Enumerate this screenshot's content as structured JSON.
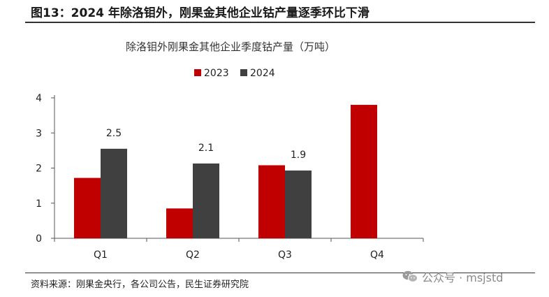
{
  "figure_title": "图13：2024 年除洛钼外，刚果金其他企业钴产量逐季环比下滑",
  "source_note": "资料来源：刚果金央行，各公司公告，民生证券研究院",
  "watermark": {
    "icon": "wechat-icon",
    "text": "公众号 · msjstd"
  },
  "chart_data": {
    "type": "bar",
    "title": "除洛钼外刚果金其他企业季度钴产量（万吨）",
    "xlabel": "",
    "ylabel": "",
    "categories": [
      "Q1",
      "Q2",
      "Q3",
      "Q4"
    ],
    "ylim": [
      0,
      4
    ],
    "yticks": [
      "0",
      "1",
      "2",
      "3",
      "4"
    ],
    "grid": false,
    "legend_position": "top-center",
    "series": [
      {
        "name": "2023",
        "color": "#c00000",
        "values": [
          1.72,
          0.85,
          2.08,
          3.8
        ]
      },
      {
        "name": "2024",
        "color": "#404040",
        "values": [
          2.55,
          2.13,
          1.93,
          null
        ]
      }
    ],
    "data_labels": [
      {
        "series": "2024",
        "category": "Q1",
        "text": "2.5"
      },
      {
        "series": "2024",
        "category": "Q2",
        "text": "2.1"
      },
      {
        "series": "2024",
        "category": "Q3",
        "text": "1.9"
      }
    ]
  }
}
